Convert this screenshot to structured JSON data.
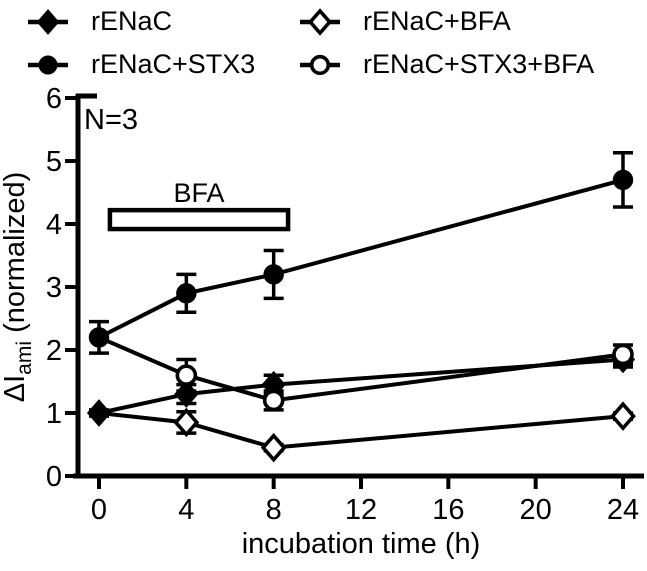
{
  "figure": {
    "background": "#ffffff",
    "ink_color": "#000000"
  },
  "legend": {
    "items": [
      {
        "label": "rENaC",
        "marker": "diamond-filled"
      },
      {
        "label": "rENaC+BFA",
        "marker": "diamond-open"
      },
      {
        "label": "rENaC+STX3",
        "marker": "circle-filled"
      },
      {
        "label": "rENaC+STX3+BFA",
        "marker": "circle-open"
      }
    ]
  },
  "chart_data": {
    "type": "line",
    "x": [
      0,
      4,
      8,
      24
    ],
    "series": [
      {
        "name": "rENaC",
        "marker": "diamond",
        "fill": "filled",
        "values": [
          1.0,
          1.3,
          1.45,
          1.85
        ],
        "errors": [
          0.05,
          0.15,
          0.15,
          0.12
        ]
      },
      {
        "name": "rENaC+STX3",
        "marker": "circle",
        "fill": "filled",
        "values": [
          2.2,
          2.9,
          3.2,
          4.7
        ],
        "errors": [
          0.25,
          0.3,
          0.38,
          0.43
        ]
      },
      {
        "name": "rENaC+BFA",
        "marker": "diamond",
        "fill": "open",
        "values": [
          1.0,
          0.85,
          0.45,
          0.95
        ],
        "errors": [
          0,
          0.17,
          0.05,
          0.05
        ]
      },
      {
        "name": "rENaC+STX3+BFA",
        "marker": "circle",
        "fill": "open",
        "values": [
          2.2,
          1.6,
          1.2,
          1.93
        ],
        "errors": [
          0,
          0.25,
          0.15,
          0.15
        ]
      }
    ],
    "xlabel": "incubation time (h)",
    "ylabel": {
      "main": "ΔI",
      "sub": "ami",
      "rest": " (normalized)",
      "text": "ΔI_ami (normalized)"
    },
    "x_ticks": [
      0,
      4,
      8,
      12,
      16,
      20,
      24
    ],
    "y_ticks": [
      0,
      1,
      2,
      3,
      4,
      5,
      6
    ],
    "xlim": [
      -1.1,
      25
    ],
    "ylim": [
      0,
      6
    ],
    "grid": false,
    "legend_position": "top",
    "annotations": {
      "n_label": "N=3",
      "bfa_label": "BFA",
      "bfa_bar": {
        "x0": 0.5,
        "x1": 8.66,
        "y0": 3.92,
        "y1": 4.22
      }
    }
  }
}
